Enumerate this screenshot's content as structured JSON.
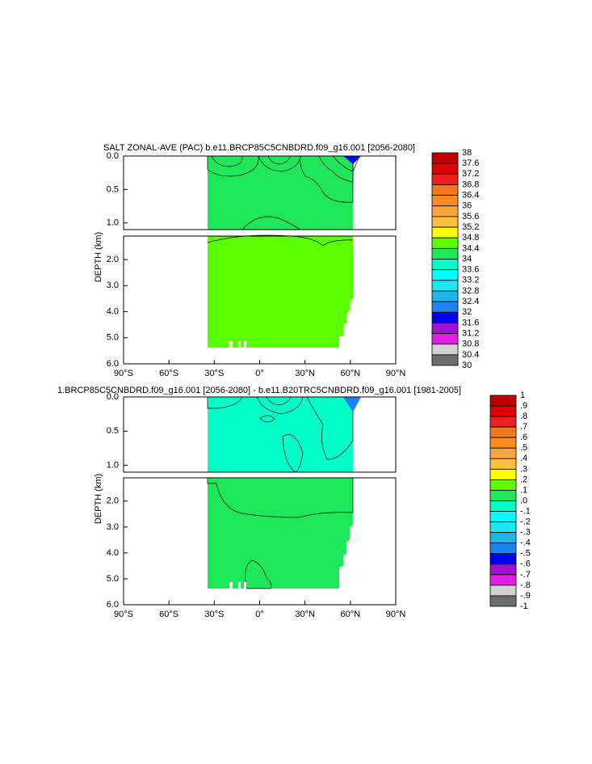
{
  "panels": [
    {
      "title": "SALT ZONAL-AVE (PAC) b.e11.BRCP85C5CNBDRD.f09_g16.001 [2056-2080]",
      "y_label": "DEPTH (km)",
      "xlim": [
        -90,
        90
      ],
      "xticks": [
        {
          "value": -90,
          "label": "90°S"
        },
        {
          "value": -60,
          "label": "60°S"
        },
        {
          "value": -30,
          "label": "30°S"
        },
        {
          "value": 0,
          "label": "0°"
        },
        {
          "value": 30,
          "label": "30°N"
        },
        {
          "value": 60,
          "label": "60°N"
        },
        {
          "value": 90,
          "label": "90°N"
        }
      ],
      "upper_ylim": [
        0,
        1.1
      ],
      "upper_yticks": [
        {
          "value": 0,
          "label": "0.0"
        },
        {
          "value": 0.5,
          "label": "0.5"
        },
        {
          "value": 1,
          "label": "1.0"
        }
      ],
      "lower_ylim": [
        1.1,
        6
      ],
      "lower_yticks": [
        {
          "value": 2,
          "label": "2.0"
        },
        {
          "value": 3,
          "label": "3.0"
        },
        {
          "value": 4,
          "label": "4.0"
        },
        {
          "value": 5,
          "label": "5.0"
        },
        {
          "value": 6,
          "label": "6.0"
        }
      ],
      "colorbar": {
        "levels": [
          38,
          37.6,
          37.2,
          36.8,
          36.4,
          36,
          35.6,
          35.2,
          34.8,
          34.4,
          34,
          33.6,
          33.2,
          32.8,
          32.4,
          32,
          31.6,
          31.2,
          30.8,
          30.4,
          30
        ],
        "colors": [
          "#c00000",
          "#e00000",
          "#f01e1e",
          "#f5781e",
          "#f78c28",
          "#f9a640",
          "#fbc040",
          "#ffff00",
          "#5aff00",
          "#1ee85a",
          "#00ffc8",
          "#00ffff",
          "#1ee6f0",
          "#1eb4f0",
          "#1e82f0",
          "#0000ff",
          "#9b14d2",
          "#e11ee1",
          "#d2d2d2",
          "#6e6e6e"
        ]
      }
    },
    {
      "title": "1.BRCP85C5CNBDRD.f09_g16.001 [2056-2080] - b.e11.B20TRC5CNBDRD.f09_g16.001 [1981-2005]",
      "y_label": "DEPTH (km)",
      "xlim": [
        -90,
        90
      ],
      "xticks": [
        {
          "value": -90,
          "label": "90°S"
        },
        {
          "value": -60,
          "label": "60°S"
        },
        {
          "value": -30,
          "label": "30°S"
        },
        {
          "value": 0,
          "label": "0°"
        },
        {
          "value": 30,
          "label": "30°N"
        },
        {
          "value": 60,
          "label": "60°N"
        },
        {
          "value": 90,
          "label": "90°N"
        }
      ],
      "upper_ylim": [
        0,
        1.1
      ],
      "upper_yticks": [
        {
          "value": 0,
          "label": "0.0"
        },
        {
          "value": 0.5,
          "label": "0.5"
        },
        {
          "value": 1,
          "label": "1.0"
        }
      ],
      "lower_ylim": [
        1.1,
        6
      ],
      "lower_yticks": [
        {
          "value": 2,
          "label": "2.0"
        },
        {
          "value": 3,
          "label": "3.0"
        },
        {
          "value": 4,
          "label": "4.0"
        },
        {
          "value": 5,
          "label": "5.0"
        },
        {
          "value": 6,
          "label": "6.0"
        }
      ],
      "colorbar": {
        "levels": [
          1,
          {
            "value": 0.9,
            "label": ".9"
          },
          {
            "value": 0.8,
            "label": ".8"
          },
          {
            "value": 0.7,
            "label": ".7"
          },
          {
            "value": 0.6,
            "label": ".6"
          },
          {
            "value": 0.5,
            "label": ".5"
          },
          {
            "value": 0.4,
            "label": ".4"
          },
          {
            "value": 0.3,
            "label": ".3"
          },
          {
            "value": 0.2,
            "label": ".2"
          },
          {
            "value": 0.1,
            "label": ".1"
          },
          {
            "value": 0,
            "label": ".0"
          },
          {
            "value": -0.1,
            "label": "-.1"
          },
          {
            "value": -0.2,
            "label": "-.2"
          },
          {
            "value": -0.3,
            "label": "-.3"
          },
          {
            "value": -0.4,
            "label": "-.4"
          },
          {
            "value": -0.5,
            "label": "-.5"
          },
          {
            "value": -0.6,
            "label": "-.6"
          },
          {
            "value": -0.7,
            "label": "-.7"
          },
          {
            "value": -0.8,
            "label": "-.8"
          },
          {
            "value": -0.9,
            "label": "-.9"
          },
          -1
        ],
        "colors": [
          "#c00000",
          "#e00000",
          "#f01e1e",
          "#f5781e",
          "#f78c28",
          "#f9a640",
          "#fbc040",
          "#ffff00",
          "#5aff00",
          "#1ee85a",
          "#00ffc8",
          "#00ffff",
          "#1ee6f0",
          "#1eb4f0",
          "#1e82f0",
          "#0000ff",
          "#9b14d2",
          "#e11ee1",
          "#d2d2d2",
          "#6e6e6e"
        ]
      }
    }
  ]
}
